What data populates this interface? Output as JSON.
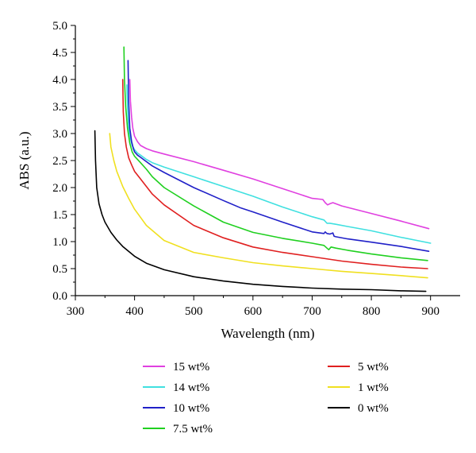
{
  "chart_data": {
    "type": "line",
    "title": "",
    "xlabel": "Wavelength (nm)",
    "ylabel": "ABS (a.u.)",
    "xlim": [
      300,
      950
    ],
    "ylim": [
      0,
      5
    ],
    "xticks": [
      300,
      400,
      500,
      600,
      700,
      800,
      900
    ],
    "yticks": [
      0.0,
      0.5,
      1.0,
      1.5,
      2.0,
      2.5,
      3.0,
      3.5,
      4.0,
      4.5,
      5.0
    ],
    "xtick_labels": [
      "300",
      "400",
      "500",
      "600",
      "700",
      "800",
      "900"
    ],
    "ytick_labels": [
      "0.0",
      "0.5",
      "1.0",
      "1.5",
      "2.0",
      "2.5",
      "3.0",
      "3.5",
      "4.0",
      "4.5",
      "5.0"
    ],
    "grid": false,
    "legend_position": "bottom",
    "series": [
      {
        "name": "15 wt%",
        "color": "#e040e0",
        "x": [
          392,
          393,
          395,
          397,
          400,
          405,
          410,
          420,
          430,
          450,
          500,
          550,
          600,
          650,
          700,
          718,
          722,
          726,
          730,
          735,
          750,
          800,
          850,
          897
        ],
        "y": [
          4.0,
          3.6,
          3.3,
          3.1,
          2.95,
          2.85,
          2.78,
          2.72,
          2.68,
          2.62,
          2.48,
          2.32,
          2.16,
          1.98,
          1.8,
          1.78,
          1.72,
          1.68,
          1.7,
          1.72,
          1.66,
          1.52,
          1.38,
          1.24
        ]
      },
      {
        "name": "14 wt%",
        "color": "#40e0e0",
        "x": [
          387,
          388,
          390,
          393,
          396,
          400,
          405,
          410,
          420,
          430,
          450,
          500,
          550,
          600,
          650,
          700,
          720,
          725,
          730,
          740,
          760,
          800,
          850,
          900
        ],
        "y": [
          3.9,
          3.5,
          3.1,
          2.9,
          2.78,
          2.7,
          2.64,
          2.6,
          2.52,
          2.46,
          2.38,
          2.2,
          2.02,
          1.84,
          1.64,
          1.46,
          1.4,
          1.34,
          1.34,
          1.32,
          1.28,
          1.2,
          1.08,
          0.97
        ]
      },
      {
        "name": "10 wt%",
        "color": "#2020c8",
        "x": [
          389,
          390,
          392,
          395,
          398,
          400,
          405,
          410,
          420,
          430,
          450,
          500,
          550,
          580,
          600,
          650,
          700,
          720,
          722,
          725,
          730,
          735,
          737,
          740,
          760,
          800,
          850,
          897
        ],
        "y": [
          4.35,
          3.6,
          3.1,
          2.85,
          2.72,
          2.66,
          2.6,
          2.56,
          2.48,
          2.4,
          2.28,
          2.0,
          1.76,
          1.62,
          1.55,
          1.36,
          1.18,
          1.15,
          1.18,
          1.15,
          1.14,
          1.16,
          1.1,
          1.09,
          1.05,
          0.99,
          0.91,
          0.82
        ]
      },
      {
        "name": "7.5 wt%",
        "color": "#20d020",
        "x": [
          382,
          383,
          385,
          388,
          392,
          396,
          400,
          405,
          410,
          420,
          430,
          450,
          500,
          550,
          600,
          650,
          700,
          720,
          725,
          728,
          732,
          740,
          760,
          800,
          850,
          895
        ],
        "y": [
          4.6,
          4.0,
          3.5,
          3.1,
          2.82,
          2.66,
          2.58,
          2.52,
          2.46,
          2.34,
          2.2,
          2.0,
          1.66,
          1.36,
          1.17,
          1.06,
          0.97,
          0.93,
          0.88,
          0.85,
          0.9,
          0.88,
          0.84,
          0.77,
          0.7,
          0.65
        ]
      },
      {
        "name": "5 wt%",
        "color": "#e02020",
        "x": [
          380,
          381,
          383,
          386,
          390,
          395,
          400,
          410,
          420,
          430,
          450,
          500,
          550,
          600,
          650,
          700,
          750,
          800,
          850,
          895
        ],
        "y": [
          4.0,
          3.4,
          3.0,
          2.75,
          2.55,
          2.42,
          2.3,
          2.16,
          2.02,
          1.88,
          1.68,
          1.3,
          1.07,
          0.9,
          0.8,
          0.72,
          0.64,
          0.58,
          0.53,
          0.5
        ]
      },
      {
        "name": "1 wt%",
        "color": "#f0e020",
        "x": [
          358,
          360,
          365,
          370,
          380,
          390,
          400,
          420,
          450,
          500,
          550,
          600,
          650,
          700,
          750,
          800,
          850,
          895
        ],
        "y": [
          3.0,
          2.75,
          2.5,
          2.3,
          2.02,
          1.8,
          1.6,
          1.3,
          1.02,
          0.8,
          0.7,
          0.61,
          0.55,
          0.5,
          0.45,
          0.41,
          0.37,
          0.33
        ]
      },
      {
        "name": "0 wt%",
        "color": "#000000",
        "x": [
          333,
          334,
          336,
          340,
          345,
          350,
          360,
          370,
          380,
          400,
          420,
          450,
          500,
          550,
          600,
          650,
          700,
          750,
          800,
          850,
          892
        ],
        "y": [
          3.05,
          2.5,
          2.0,
          1.7,
          1.5,
          1.36,
          1.17,
          1.03,
          0.91,
          0.73,
          0.6,
          0.48,
          0.35,
          0.27,
          0.21,
          0.17,
          0.14,
          0.12,
          0.11,
          0.09,
          0.08
        ]
      }
    ]
  }
}
